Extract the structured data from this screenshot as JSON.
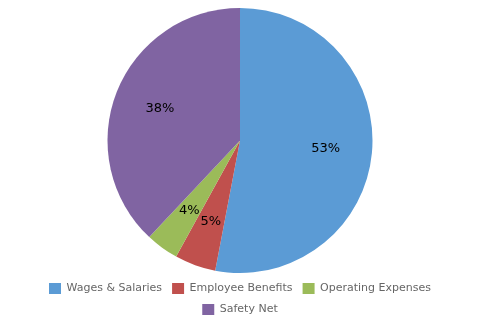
{
  "chart_data": {
    "type": "pie",
    "categories": [
      "Wages & Salaries",
      "Employee Benefits",
      "Operating Expenses",
      "Safety Net"
    ],
    "values": [
      53,
      5,
      4,
      38
    ],
    "value_labels": [
      "53%",
      "5%",
      "4%",
      "38%"
    ],
    "colors": [
      "#5b9bd5",
      "#c0504d",
      "#9bbb59",
      "#8064a2"
    ],
    "data_labels": true,
    "legend": "bottom"
  }
}
